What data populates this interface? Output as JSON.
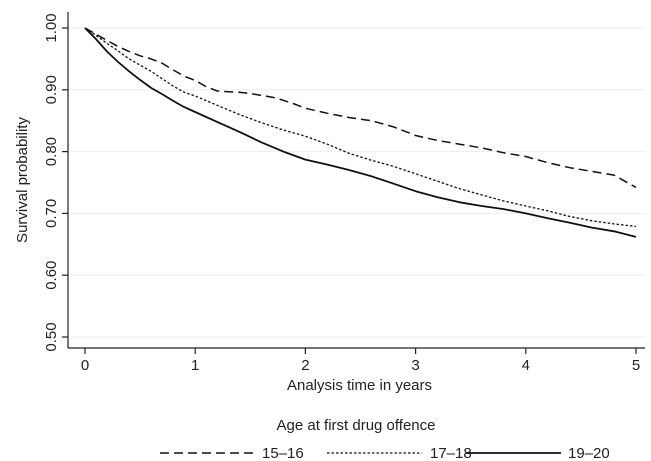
{
  "chart_data": {
    "type": "line",
    "title": "",
    "xlabel": "Analysis time in years",
    "ylabel": "Survival probability",
    "xlim": [
      0,
      5
    ],
    "ylim": [
      0.5,
      1.0
    ],
    "x_ticks": [
      0,
      1,
      2,
      3,
      4,
      5
    ],
    "x_tick_labels": [
      "0",
      "1",
      "2",
      "3",
      "4",
      "5"
    ],
    "y_ticks": [
      0.5,
      0.6,
      0.7,
      0.8,
      0.9,
      1.0
    ],
    "y_tick_labels": [
      "0.50",
      "0.60",
      "0.70",
      "0.80",
      "0.90",
      "1.00"
    ],
    "grid": "horizontal",
    "legend": {
      "title": "Age at first drug offence",
      "placement": "bottom"
    },
    "series": [
      {
        "name": "15–16",
        "style": "dashed",
        "x": [
          0,
          0.1,
          0.2,
          0.3,
          0.4,
          0.5,
          0.6,
          0.7,
          0.8,
          0.9,
          1.0,
          1.1,
          1.2,
          1.3,
          1.4,
          1.5,
          1.6,
          1.7,
          1.8,
          1.9,
          2.0,
          2.2,
          2.4,
          2.6,
          2.8,
          3.0,
          3.2,
          3.4,
          3.6,
          3.8,
          4.0,
          4.2,
          4.4,
          4.6,
          4.8,
          4.9,
          5.0
        ],
        "y": [
          1.0,
          0.99,
          0.98,
          0.97,
          0.962,
          0.955,
          0.95,
          0.943,
          0.932,
          0.922,
          0.915,
          0.905,
          0.898,
          0.897,
          0.896,
          0.894,
          0.891,
          0.888,
          0.883,
          0.877,
          0.87,
          0.862,
          0.855,
          0.85,
          0.84,
          0.826,
          0.818,
          0.812,
          0.806,
          0.798,
          0.792,
          0.782,
          0.774,
          0.768,
          0.762,
          0.752,
          0.742
        ]
      },
      {
        "name": "17–18",
        "style": "dotted",
        "x": [
          0,
          0.1,
          0.2,
          0.3,
          0.4,
          0.5,
          0.6,
          0.7,
          0.8,
          0.9,
          1.0,
          1.2,
          1.4,
          1.6,
          1.8,
          2.0,
          2.2,
          2.4,
          2.6,
          2.8,
          3.0,
          3.2,
          3.4,
          3.6,
          3.8,
          4.0,
          4.2,
          4.4,
          4.6,
          4.8,
          5.0
        ],
        "y": [
          1.0,
          0.988,
          0.975,
          0.963,
          0.95,
          0.94,
          0.93,
          0.918,
          0.906,
          0.896,
          0.89,
          0.875,
          0.86,
          0.847,
          0.835,
          0.825,
          0.812,
          0.797,
          0.786,
          0.776,
          0.764,
          0.752,
          0.74,
          0.73,
          0.72,
          0.712,
          0.704,
          0.695,
          0.688,
          0.683,
          0.679
        ]
      },
      {
        "name": "19–20",
        "style": "solid",
        "x": [
          0,
          0.1,
          0.2,
          0.3,
          0.4,
          0.5,
          0.6,
          0.7,
          0.8,
          0.9,
          1.0,
          1.2,
          1.4,
          1.6,
          1.8,
          2.0,
          2.2,
          2.4,
          2.6,
          2.8,
          3.0,
          3.2,
          3.4,
          3.6,
          3.8,
          4.0,
          4.2,
          4.4,
          4.6,
          4.8,
          5.0
        ],
        "y": [
          1.0,
          0.982,
          0.962,
          0.945,
          0.93,
          0.916,
          0.903,
          0.893,
          0.882,
          0.872,
          0.864,
          0.848,
          0.832,
          0.815,
          0.8,
          0.787,
          0.779,
          0.77,
          0.76,
          0.748,
          0.736,
          0.726,
          0.718,
          0.712,
          0.707,
          0.7,
          0.692,
          0.685,
          0.677,
          0.671,
          0.662
        ]
      }
    ]
  }
}
